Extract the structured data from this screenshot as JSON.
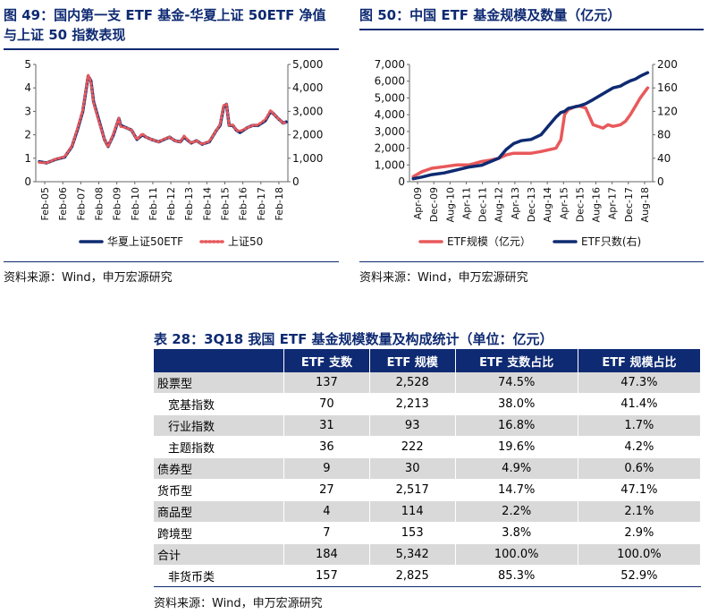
{
  "left_panel": {
    "title_line1": "图 49：国内第一支 ETF 基金-华夏上证 50ETF 净值",
    "title_line2": "与上证 50 指数表现",
    "source": "资料来源：Wind，申万宏源研究"
  },
  "right_panel": {
    "title": "图 50：中国 ETF 基金规模及数量（亿元）",
    "source": "资料来源：Wind，申万宏源研究"
  },
  "table": {
    "title": "表 28：3Q18 我国 ETF 基金规模数量及构成统计（单位：亿元）",
    "headers": [
      "",
      "ETF 支数",
      "ETF 规模",
      "ETF 支数占比",
      "ETF 规模占比"
    ],
    "rows": [
      {
        "label": "股票型",
        "count": "137",
        "size": "2,528",
        "count_pct": "74.5%",
        "size_pct": "47.3%",
        "sub": false
      },
      {
        "label": "宽基指数",
        "count": "70",
        "size": "2,213",
        "count_pct": "38.0%",
        "size_pct": "41.4%",
        "sub": true
      },
      {
        "label": "行业指数",
        "count": "31",
        "size": "93",
        "count_pct": "16.8%",
        "size_pct": "1.7%",
        "sub": true
      },
      {
        "label": "主题指数",
        "count": "36",
        "size": "222",
        "count_pct": "19.6%",
        "size_pct": "4.2%",
        "sub": true
      },
      {
        "label": "债券型",
        "count": "9",
        "size": "30",
        "count_pct": "4.9%",
        "size_pct": "0.6%",
        "sub": false
      },
      {
        "label": "货币型",
        "count": "27",
        "size": "2,517",
        "count_pct": "14.7%",
        "size_pct": "47.1%",
        "sub": false
      },
      {
        "label": "商品型",
        "count": "4",
        "size": "114",
        "count_pct": "2.2%",
        "size_pct": "2.1%",
        "sub": false
      },
      {
        "label": "跨境型",
        "count": "7",
        "size": "153",
        "count_pct": "3.8%",
        "size_pct": "2.9%",
        "sub": false
      },
      {
        "label": "合计",
        "count": "184",
        "size": "5,342",
        "count_pct": "100.0%",
        "size_pct": "100.0%",
        "sub": false
      },
      {
        "label": "非货币类",
        "count": "157",
        "size": "2,825",
        "count_pct": "85.3%",
        "size_pct": "52.9%",
        "sub": true
      }
    ],
    "source": "资料来源：Wind，申万宏源研究"
  },
  "colors": {
    "navy": "#0e2a72",
    "red": "#e8595b",
    "teal_axis": "#2a6f8f",
    "row_alt": "#d9d9d9"
  },
  "chart_data": [
    {
      "type": "line",
      "x_ticks": [
        "Feb-05",
        "Feb-06",
        "Feb-07",
        "Feb-08",
        "Feb-09",
        "Feb-10",
        "Feb-11",
        "Feb-12",
        "Feb-13",
        "Feb-14",
        "Feb-15",
        "Feb-16",
        "Feb-17",
        "Feb-18"
      ],
      "ylim_left": [
        0,
        5
      ],
      "y_ticks_left": [
        "0",
        "1",
        "2",
        "3",
        "4",
        "5"
      ],
      "ylim_right": [
        0,
        5000
      ],
      "y_ticks_right": [
        "0",
        "1,000",
        "2,000",
        "3,000",
        "4,000",
        "5,000"
      ],
      "x": [
        2005.1,
        2005.5,
        2006.0,
        2006.5,
        2006.9,
        2007.2,
        2007.5,
        2007.8,
        2007.95,
        2008.1,
        2008.4,
        2008.7,
        2008.9,
        2009.2,
        2009.5,
        2009.6,
        2009.9,
        2010.2,
        2010.5,
        2010.8,
        2011.0,
        2011.3,
        2011.7,
        2012.0,
        2012.3,
        2012.6,
        2012.9,
        2013.1,
        2013.5,
        2013.8,
        2014.1,
        2014.5,
        2014.9,
        2015.1,
        2015.3,
        2015.45,
        2015.6,
        2015.8,
        2016.0,
        2016.2,
        2016.6,
        2016.9,
        2017.2,
        2017.6,
        2017.9,
        2018.05,
        2018.3,
        2018.6,
        2018.75
      ],
      "series": [
        {
          "name": "华夏上证50ETF",
          "axis": "left",
          "style": "solid",
          "values": [
            0.85,
            0.8,
            0.95,
            1.05,
            1.5,
            2.2,
            3.0,
            4.5,
            4.3,
            3.4,
            2.6,
            1.8,
            1.5,
            2.0,
            2.7,
            2.4,
            2.3,
            2.2,
            1.8,
            2.0,
            1.9,
            1.8,
            1.7,
            1.8,
            1.9,
            1.75,
            1.7,
            1.9,
            1.65,
            1.75,
            1.6,
            1.7,
            2.2,
            2.4,
            3.2,
            3.3,
            2.4,
            2.4,
            2.2,
            2.1,
            2.3,
            2.4,
            2.4,
            2.6,
            3.0,
            2.9,
            2.7,
            2.5,
            2.55
          ]
        },
        {
          "name": "上证50",
          "axis": "right",
          "style": "dotted",
          "values": [
            820,
            800,
            960,
            1060,
            1520,
            2250,
            3050,
            4550,
            4250,
            3350,
            2550,
            1800,
            1480,
            2050,
            2700,
            2350,
            2300,
            2200,
            1800,
            2050,
            1900,
            1800,
            1700,
            1820,
            1900,
            1750,
            1700,
            1950,
            1650,
            1750,
            1600,
            1720,
            2200,
            2450,
            3250,
            3300,
            2400,
            2420,
            2200,
            2150,
            2300,
            2400,
            2420,
            2650,
            3050,
            2900,
            2700,
            2500,
            2550
          ]
        }
      ],
      "legend": "bottom"
    },
    {
      "type": "line",
      "x_ticks": [
        "Apr-09",
        "Dec-09",
        "Aug-10",
        "Apr-11",
        "Dec-11",
        "Aug-12",
        "Apr-13",
        "Dec-13",
        "Aug-14",
        "Apr-15",
        "Dec-15",
        "Aug-16",
        "Apr-17",
        "Dec-17",
        "Aug-18"
      ],
      "ylim_left": [
        0,
        7000
      ],
      "y_ticks_left": [
        "0",
        "1,000",
        "2,000",
        "3,000",
        "4,000",
        "5,000",
        "6,000",
        "7,000"
      ],
      "ylim_right": [
        0,
        200
      ],
      "y_ticks_right": [
        "0",
        "40",
        "80",
        "120",
        "160",
        "200"
      ],
      "x": [
        2009.25,
        2009.6,
        2010.0,
        2010.5,
        2011.0,
        2011.5,
        2012.0,
        2012.4,
        2012.7,
        2013.0,
        2013.3,
        2013.6,
        2014.0,
        2014.4,
        2014.7,
        2015.0,
        2015.2,
        2015.35,
        2015.5,
        2015.8,
        2016.0,
        2016.2,
        2016.5,
        2016.9,
        2017.1,
        2017.3,
        2017.6,
        2017.8,
        2018.0,
        2018.2,
        2018.4,
        2018.7
      ],
      "series": [
        {
          "name": "ETF规模（亿元）",
          "axis": "left",
          "color": "#e8595b",
          "values": [
            300,
            600,
            800,
            900,
            1000,
            1000,
            1200,
            1300,
            1400,
            1600,
            1700,
            1700,
            1700,
            1800,
            1900,
            2000,
            2500,
            4000,
            4300,
            4500,
            4500,
            4400,
            3400,
            3200,
            3400,
            3300,
            3400,
            3600,
            4000,
            4500,
            5000,
            5600
          ]
        },
        {
          "name": "ETF只数(右)",
          "axis": "right",
          "color": "#0e2a72",
          "values": [
            5,
            8,
            12,
            15,
            20,
            25,
            28,
            35,
            40,
            55,
            65,
            70,
            72,
            80,
            95,
            110,
            118,
            120,
            125,
            128,
            130,
            133,
            140,
            150,
            155,
            160,
            163,
            168,
            172,
            175,
            180,
            186
          ]
        }
      ],
      "legend": "bottom"
    }
  ]
}
